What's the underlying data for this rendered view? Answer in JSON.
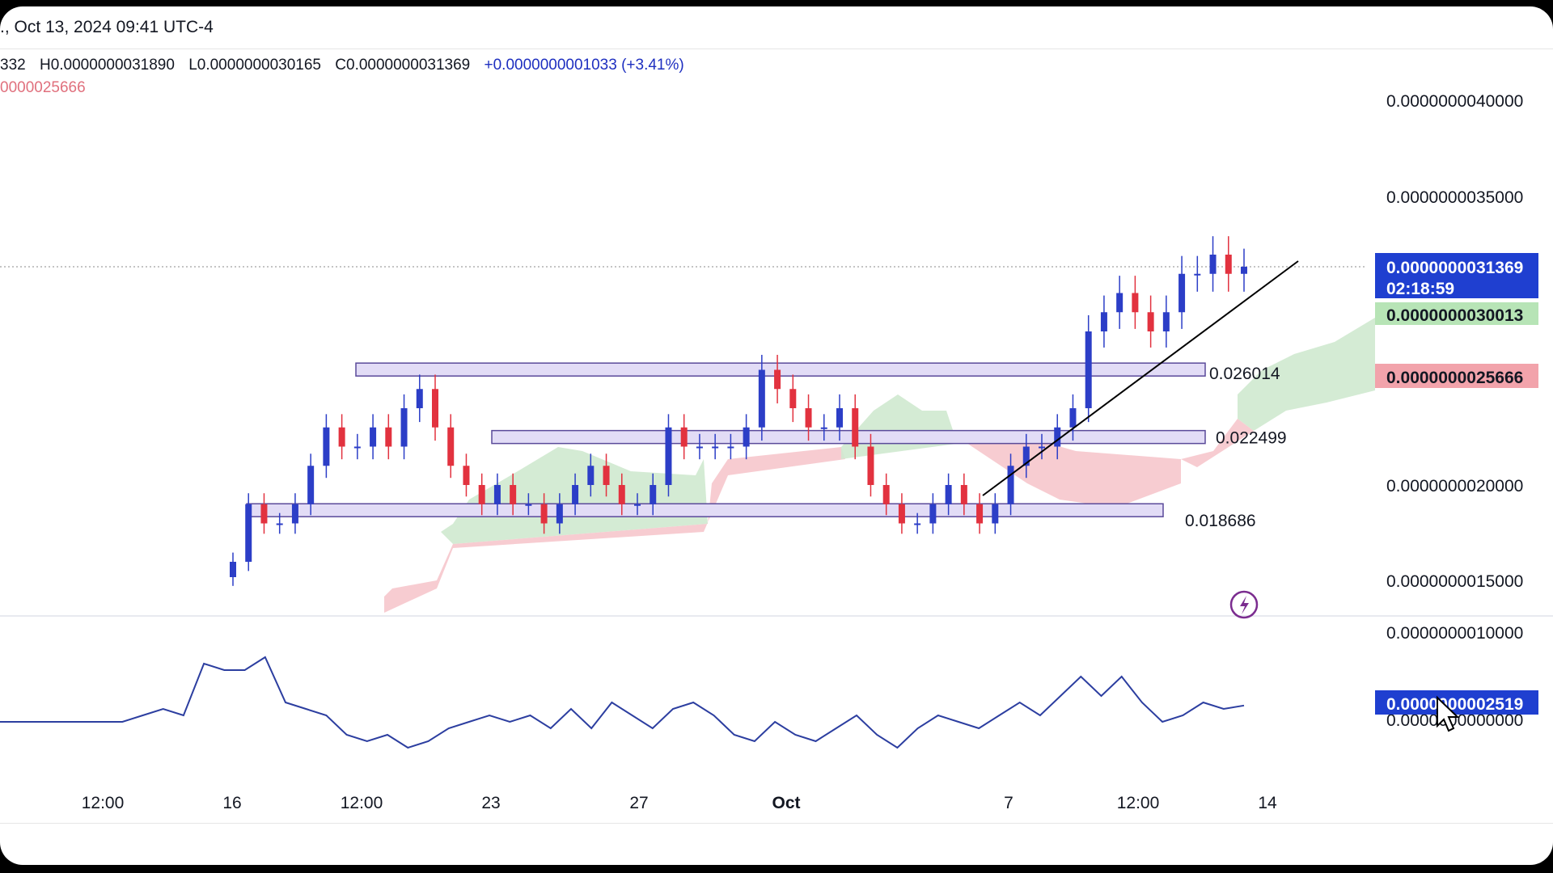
{
  "header": {
    "datetime": "., Oct 13, 2024 09:41 UTC-4",
    "ohlc": {
      "o_partial": "332",
      "h": "H0.0000000031890",
      "l": "L0.0000000030165",
      "c": "C0.0000000031369",
      "change": "+0.0000000001033 (+3.41%)"
    },
    "indicator_value": "0000025666"
  },
  "colors": {
    "up": "#2c3ec7",
    "down": "#e2323f",
    "cloud_green": "#cfe9cf",
    "cloud_red": "#f6c7cc",
    "zone_fill": "#e2dcf6",
    "zone_stroke": "#5a4a9a",
    "price_badge": "#1f3fd0",
    "green_badge": "#b7e4b6",
    "red_badge": "#f2a3ab"
  },
  "chart_data": [
    {
      "type": "candlestick",
      "price_axis_ticks": [
        "0.0000000040000",
        "0.0000000035000",
        "0.0000000020000",
        "0.0000000015000",
        "0.0000000010000"
      ],
      "ylim": [
        1e-09,
        4.2e-09
      ],
      "x_tick_labels": [
        "12:00",
        "16",
        "12:00",
        "23",
        "27",
        "Oct",
        "7",
        "12:00",
        "14"
      ],
      "price_badges": {
        "current": "0.0000000031369",
        "countdown": "02:18:59",
        "green": "0.0000000030013",
        "red": "0.0000000025666"
      },
      "zones": [
        {
          "label": "0.026014",
          "value": 2.6014e-09
        },
        {
          "label": "0.022499",
          "value": 2.2499e-09
        },
        {
          "label": "0.018686",
          "value": 1.8686e-09
        }
      ],
      "closes": [
        1.6e-09,
        1.9e-09,
        1.8e-09,
        1.8e-09,
        1.9e-09,
        2.1e-09,
        2.3e-09,
        2.2e-09,
        2.2e-09,
        2.3e-09,
        2.2e-09,
        2.4e-09,
        2.5e-09,
        2.3e-09,
        2.1e-09,
        2e-09,
        1.9e-09,
        2e-09,
        1.9e-09,
        1.9e-09,
        1.8e-09,
        1.9e-09,
        2e-09,
        2.1e-09,
        2e-09,
        1.9e-09,
        1.9e-09,
        2e-09,
        2.3e-09,
        2.2e-09,
        2.2e-09,
        2.2e-09,
        2.2e-09,
        2.3e-09,
        2.6e-09,
        2.5e-09,
        2.4e-09,
        2.3e-09,
        2.3e-09,
        2.4e-09,
        2.2e-09,
        2e-09,
        1.9e-09,
        1.8e-09,
        1.8e-09,
        1.9e-09,
        2e-09,
        1.9e-09,
        1.8e-09,
        1.9e-09,
        2.1e-09,
        2.2e-09,
        2.2e-09,
        2.3e-09,
        2.4e-09,
        2.8e-09,
        2.9e-09,
        3e-09,
        2.9e-09,
        2.8e-09,
        2.9e-09,
        3.1e-09,
        3.1e-09,
        3.2e-09,
        3.1e-09,
        3.1369e-09
      ]
    },
    {
      "type": "line",
      "name": "oscillator",
      "ticks": [
        "0.0000000000000"
      ],
      "current_badge": "0.0000000002519",
      "values": [
        0.0,
        0.0,
        0.0,
        0.0,
        0.0,
        0.0,
        0.0,
        0.1,
        0.2,
        0.1,
        0.9,
        0.8,
        0.8,
        1.0,
        0.3,
        0.2,
        0.1,
        -0.2,
        -0.3,
        -0.2,
        -0.4,
        -0.3,
        -0.1,
        0.0,
        0.1,
        0.0,
        0.1,
        -0.1,
        0.2,
        -0.1,
        0.3,
        0.1,
        -0.1,
        0.2,
        0.3,
        0.1,
        -0.2,
        -0.3,
        0.0,
        -0.2,
        -0.3,
        -0.1,
        0.1,
        -0.2,
        -0.4,
        -0.1,
        0.1,
        0.0,
        -0.1,
        0.1,
        0.3,
        0.1,
        0.4,
        0.7,
        0.4,
        0.7,
        0.3,
        0.0,
        0.1,
        0.3,
        0.2,
        0.2519
      ]
    }
  ]
}
